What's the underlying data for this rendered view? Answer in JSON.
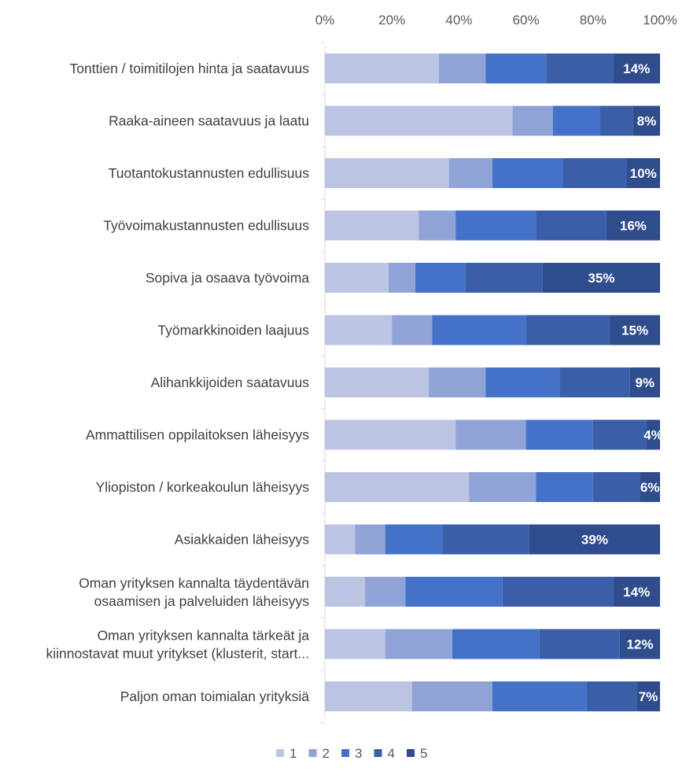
{
  "chart_data": {
    "type": "bar",
    "orientation": "horizontal",
    "stacked": "percent",
    "title": "",
    "xlabel": "",
    "ylabel": "",
    "xlim": [
      0,
      100
    ],
    "x_ticks": [
      "0%",
      "20%",
      "40%",
      "60%",
      "80%",
      "100%"
    ],
    "grid": false,
    "legend_position": "bottom",
    "categories": [
      [
        "Tonttien / toimitilojen hinta ja saatavuus"
      ],
      [
        "Raaka-aineen saatavuus ja laatu"
      ],
      [
        "Tuotantokustannusten edullisuus"
      ],
      [
        "Työvoimakustannusten edullisuus"
      ],
      [
        "Sopiva ja osaava työvoima"
      ],
      [
        "Työmarkkinoiden laajuus"
      ],
      [
        "Alihankkijoiden saatavuus"
      ],
      [
        "Ammattilisen oppilaitoksen läheisyys"
      ],
      [
        "Yliopiston / korkeakoulun läheisyys"
      ],
      [
        "Asiakkaiden läheisyys"
      ],
      [
        "Oman yrityksen kannalta täydentävän",
        "osaamisen ja palveluiden läheisyys"
      ],
      [
        "Oman yrityksen kannalta tärkeät ja",
        "kiinnostavat muut yritykset (klusterit, start..."
      ],
      [
        "Paljon oman toimialan yrityksiä"
      ]
    ],
    "series": [
      {
        "name": "1",
        "color": "#bcc4e4",
        "values": [
          34,
          56,
          37,
          28,
          19,
          20,
          31,
          39,
          43,
          9,
          12,
          18,
          26
        ]
      },
      {
        "name": "2",
        "color": "#8fa3d6",
        "values": [
          14,
          12,
          13,
          11,
          8,
          12,
          17,
          21,
          20,
          9,
          12,
          20,
          24
        ]
      },
      {
        "name": "3",
        "color": "#4472c8",
        "values": [
          18,
          14,
          21,
          24,
          15,
          28,
          22,
          20,
          17,
          17,
          29,
          26,
          28
        ]
      },
      {
        "name": "4",
        "color": "#3a5ea8",
        "values": [
          20,
          10,
          19,
          21,
          23,
          25,
          21,
          16,
          14,
          26,
          33,
          24,
          15
        ]
      },
      {
        "name": "5",
        "color": "#2f4d8c",
        "values": [
          14,
          8,
          10,
          16,
          35,
          15,
          9,
          4,
          6,
          39,
          14,
          12,
          7
        ]
      }
    ],
    "data_labels": [
      "14%",
      "8%",
      "10%",
      "16%",
      "35%",
      "15%",
      "9%",
      "4%",
      "6%",
      "39%",
      "14%",
      "12%",
      "7%"
    ]
  }
}
